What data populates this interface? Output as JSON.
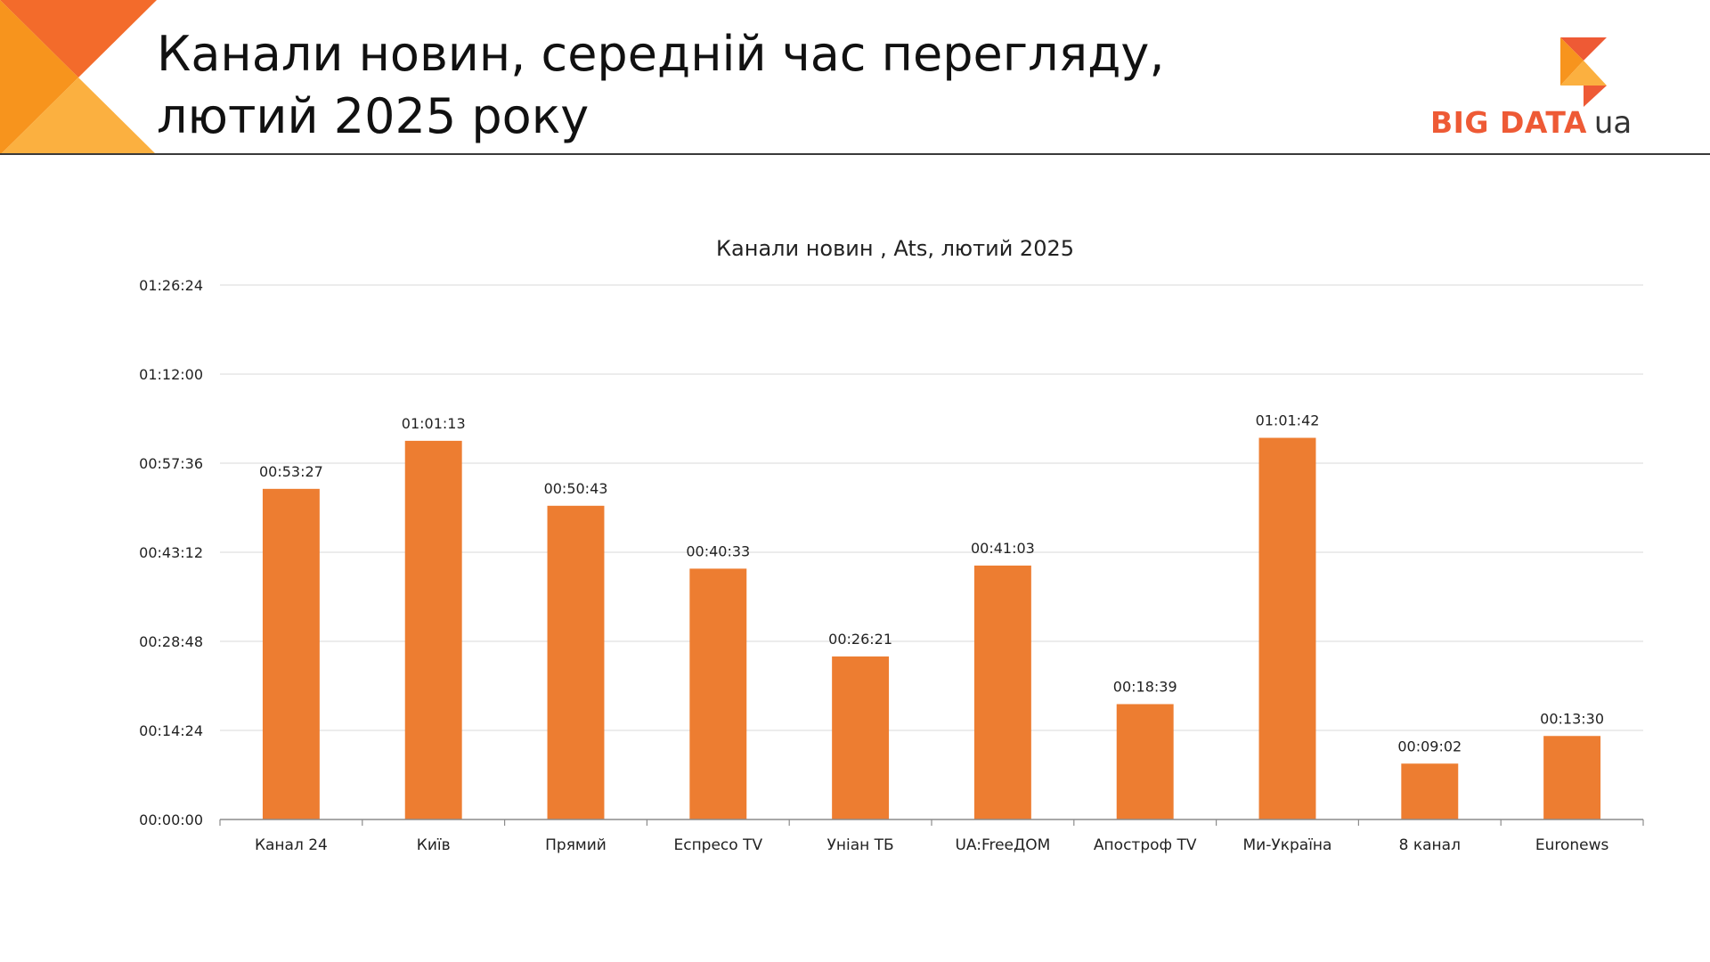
{
  "slide": {
    "title_line1": "Канали новин, середній час перегляду,",
    "title_line2": "лютий 2025 року",
    "logo_text": "BIG DATA",
    "logo_suffix": "ua"
  },
  "colors": {
    "bar": "#ed7d31",
    "logo_orange": "#ee5a35",
    "deco_dark": "#f36b2b",
    "deco_mid": "#f7941d",
    "deco_light": "#fbb040"
  },
  "chart_data": {
    "type": "bar",
    "title": "Канали новин , Ats, лютий 2025",
    "categories": [
      "Канал 24",
      "Київ",
      "Прямий",
      "Еспресо TV",
      "Уніан ТБ",
      "UA:FreeДОМ",
      "Апостроф TV",
      "Ми-Україна",
      "8 канал",
      "Euronews"
    ],
    "values": [
      3207,
      3673,
      3043,
      2433,
      1581,
      2463,
      1119,
      3702,
      542,
      810
    ],
    "data_labels": [
      "00:53:27",
      "01:01:13",
      "00:50:43",
      "00:40:33",
      "00:26:21",
      "00:41:03",
      "00:18:39",
      "01:01:42",
      "00:09:02",
      "00:13:30"
    ],
    "value_unit": "seconds",
    "ylim": [
      0,
      5184
    ],
    "yticks": [
      0,
      864,
      1728,
      2592,
      3456,
      4320,
      5184
    ],
    "ytick_labels": [
      "00:00:00",
      "00:14:24",
      "00:28:48",
      "00:43:12",
      "00:57:36",
      "01:12:00",
      "01:26:24"
    ],
    "xlabel": "",
    "ylabel": "",
    "grid": true,
    "legend": "none"
  }
}
